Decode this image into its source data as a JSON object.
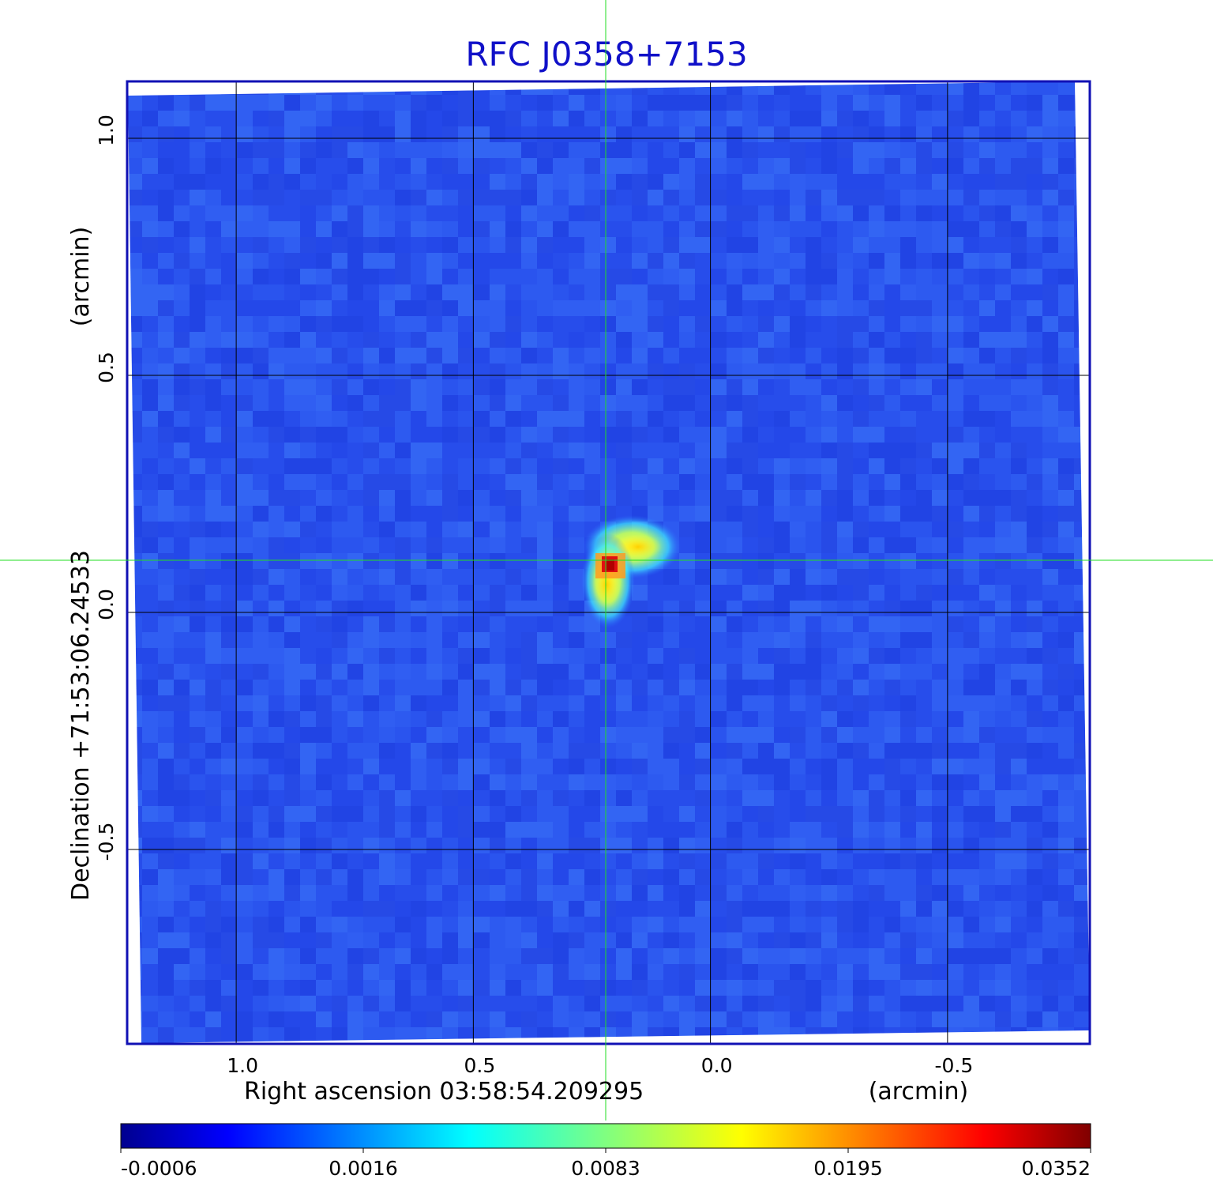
{
  "chart_data": {
    "type": "heatmap",
    "title": "RFC J0358+7153",
    "xlabel": "Right ascension  03:58:54.209295",
    "xunit": "(arcmin)",
    "ylabel": "Declination  +71:53:06.24533",
    "yunit": "(arcmin)",
    "xlim": [
      1.23,
      -0.8
    ],
    "ylim": [
      -0.91,
      1.12
    ],
    "x_ticks": [
      {
        "value": 1.0,
        "label": "1.0"
      },
      {
        "value": 0.5,
        "label": "0.5"
      },
      {
        "value": 0.0,
        "label": "0.0"
      },
      {
        "value": -0.5,
        "label": "-0.5"
      }
    ],
    "y_ticks": [
      {
        "value": 1.0,
        "label": "1.0"
      },
      {
        "value": 0.5,
        "label": "0.5"
      },
      {
        "value": 0.0,
        "label": "0.0"
      },
      {
        "value": -0.5,
        "label": "-0.5"
      }
    ],
    "grid": true,
    "crosshair": {
      "x": 0.215,
      "y": 0.107
    },
    "source_peak": {
      "x": 0.215,
      "y": 0.1,
      "value": 0.0352
    },
    "colorbar": {
      "labels": [
        "-0.0006",
        "0.0016",
        "0.0083",
        "0.0195",
        "0.0352"
      ],
      "colormap": "jet"
    }
  },
  "colors": {
    "title": "#1010c8",
    "frame": "#1010b4",
    "grid": "#000000",
    "crosshair": "#22dd22",
    "background_field": "#2a52ee"
  }
}
